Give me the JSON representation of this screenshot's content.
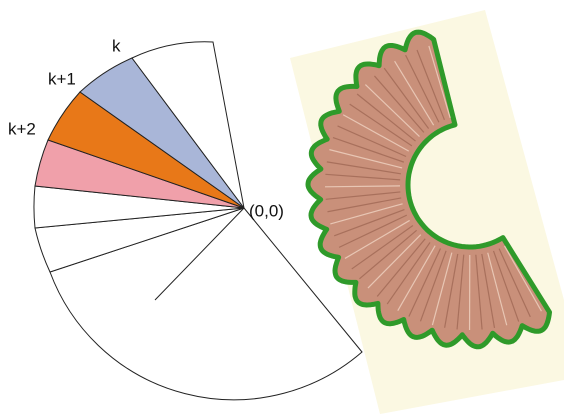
{
  "labels": {
    "sectors": [
      "k",
      "k+1",
      "k+2"
    ],
    "origin": "(0,0)"
  }
}
